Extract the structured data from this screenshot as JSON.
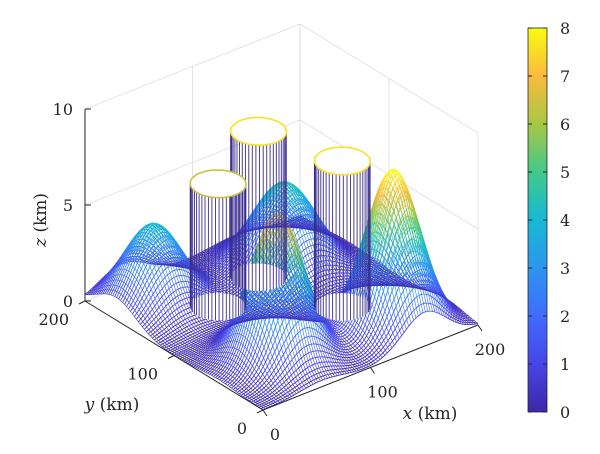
{
  "chart_data": {
    "type": "surface3d",
    "title": "",
    "x_axis": {
      "label": "x (km)",
      "range": [
        0,
        200
      ],
      "ticks": [
        "0",
        "100",
        "200"
      ]
    },
    "y_axis": {
      "label": "y (km)",
      "range": [
        0,
        200
      ],
      "ticks": [
        "0",
        "100",
        "200"
      ]
    },
    "z_axis": {
      "label": "z (km)",
      "range": [
        0,
        10
      ],
      "ticks": [
        "0",
        "5",
        "10"
      ]
    },
    "colorbar": {
      "range": [
        0,
        8
      ],
      "ticks": [
        "0",
        "1",
        "2",
        "3",
        "4",
        "5",
        "6",
        "7",
        "8"
      ],
      "colormap": "parula",
      "colors": [
        "#3e26a8",
        "#4745e9",
        "#3f6cfd",
        "#2c96ee",
        "#16b9d4",
        "#42c98a",
        "#a8c743",
        "#fbba3e",
        "#f9fb0e"
      ]
    },
    "grid": true,
    "peaks": [
      {
        "x": 35,
        "y": 165,
        "height": 4.2,
        "width": 22
      },
      {
        "x": 55,
        "y": 50,
        "height": 7.6,
        "width": 20
      },
      {
        "x": 150,
        "y": 35,
        "height": 8.2,
        "width": 20
      },
      {
        "x": 140,
        "y": 145,
        "height": 4.6,
        "width": 24
      }
    ],
    "cylinders": [
      {
        "x": 70,
        "y": 135,
        "radius": 20,
        "height": 6.4
      },
      {
        "x": 120,
        "y": 150,
        "radius": 20,
        "height": 7.6
      },
      {
        "x": 140,
        "y": 80,
        "radius": 20,
        "height": 7.6
      }
    ]
  }
}
